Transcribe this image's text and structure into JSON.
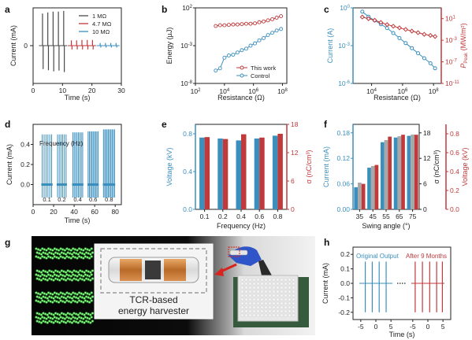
{
  "colors": {
    "gray": "#4a4a4a",
    "red": "#c0393b",
    "blue": "#3b8fbd",
    "axis": "#222222",
    "green": "#6dff6d"
  },
  "panel_letters": [
    "a",
    "b",
    "c",
    "d",
    "e",
    "f",
    "g",
    "h"
  ],
  "chart_data": [
    {
      "panel": "a",
      "type": "line",
      "xlabel": "Time (s)",
      "ylabel": "Current (mA)",
      "xlim": [
        0,
        30
      ],
      "ylim": [
        -1.0,
        1.0
      ],
      "xticks": [
        "0",
        "10",
        "20",
        "30"
      ],
      "yticks": [
        "0"
      ],
      "legend_position": "top-right",
      "series": [
        {
          "name": "1 MΩ",
          "color": "#4a4a4a",
          "pulse_times": [
            3.2,
            5.0,
            6.8,
            8.6,
            10.4
          ],
          "peaks_mA": [
            0.85,
            0.88,
            0.9,
            0.9,
            0.92
          ],
          "troughs_mA": [
            -0.62,
            -0.65,
            -0.68,
            -0.66,
            -0.7
          ]
        },
        {
          "name": "4.7 MΩ",
          "color": "#c0393b",
          "pulse_times": [
            13.0,
            14.8,
            16.6,
            18.4,
            20.2
          ],
          "peaks_mA": [
            0.14,
            0.14,
            0.15,
            0.15,
            0.15
          ],
          "troughs_mA": [
            -0.1,
            -0.1,
            -0.1,
            -0.1,
            -0.1
          ]
        },
        {
          "name": "10 MΩ",
          "color": "#3b8fbd",
          "pulse_times": [
            22.8,
            24.6,
            26.4,
            28.2
          ],
          "peaks_mA": [
            0.07,
            0.07,
            0.07,
            0.07
          ],
          "troughs_mA": [
            -0.05,
            -0.05,
            -0.05,
            -0.05
          ]
        }
      ]
    },
    {
      "panel": "b",
      "type": "line",
      "xlabel": "Resistance (Ω)",
      "ylabel": "Energy (µJ)",
      "scale": "log",
      "xlim_exp": [
        2,
        8.3
      ],
      "ylim_exp": [
        -8,
        2
      ],
      "xticks": [
        {
          "base": "10",
          "exp": "2"
        },
        {
          "base": "10",
          "exp": "4"
        },
        {
          "base": "10",
          "exp": "6"
        },
        {
          "base": "10",
          "exp": "8"
        }
      ],
      "yticks": [
        {
          "base": "10",
          "exp": "-8"
        },
        {
          "base": "10",
          "exp": "-3"
        },
        {
          "base": "10",
          "exp": "2"
        }
      ],
      "legend_position": "bottom-right",
      "series": [
        {
          "name": "This work",
          "color": "#c0393b",
          "x_exp": [
            3.4,
            3.7,
            4.0,
            4.3,
            4.6,
            4.9,
            5.2,
            5.5,
            5.8,
            6.1,
            6.4,
            6.7,
            7.0,
            7.3,
            7.6,
            7.9
          ],
          "y_exp": [
            -0.4,
            -0.3,
            -0.3,
            -0.25,
            -0.2,
            -0.2,
            -0.15,
            -0.1,
            -0.1,
            -0.05,
            0.1,
            0.2,
            0.35,
            0.5,
            0.7,
            0.9
          ]
        },
        {
          "name": "Control",
          "color": "#3b8fbd",
          "x_exp": [
            3.4,
            3.7,
            4.0,
            4.3,
            4.6,
            4.9,
            5.2,
            5.5,
            5.8,
            6.1,
            6.4,
            6.7,
            7.0,
            7.3,
            7.6,
            7.9
          ],
          "y_exp": [
            -6.3,
            -6.0,
            -4.6,
            -4.3,
            -4.2,
            -3.9,
            -3.6,
            -3.4,
            -3.0,
            -2.7,
            -2.3,
            -2.0,
            -1.6,
            -1.3,
            -1.0,
            -0.8
          ]
        }
      ]
    },
    {
      "panel": "c",
      "type": "line",
      "xlabel": "Resistance (Ω)",
      "ylabel": "Current (A)",
      "ylabel_right_base": "P",
      "ylabel_right_sub": "Peak",
      "ylabel_right_unit": " (MW/m²)",
      "scale": "log",
      "xlim_exp": [
        2.8,
        8.5
      ],
      "ylim_left_exp": [
        -6,
        0
      ],
      "ylim_right_exp": [
        -11,
        3
      ],
      "xticks": [
        {
          "base": "10",
          "exp": "4"
        },
        {
          "base": "10",
          "exp": "6"
        },
        {
          "base": "10",
          "exp": "8"
        }
      ],
      "yticks_left": [
        {
          "base": "10",
          "exp": "-6"
        },
        {
          "base": "10",
          "exp": "-3"
        },
        {
          "base": "10",
          "exp": "0"
        }
      ],
      "yticks_right": [
        {
          "base": "10",
          "exp": "1"
        },
        {
          "base": "10",
          "exp": "-3"
        },
        {
          "base": "10",
          "exp": "-7"
        },
        {
          "base": "10",
          "exp": "-11"
        }
      ],
      "series": [
        {
          "axis": "left",
          "color": "#3b8fbd",
          "x_exp": [
            3.4,
            3.8,
            4.2,
            4.6,
            5.0,
            5.4,
            5.8,
            6.2,
            6.6,
            7.0,
            7.4,
            7.8,
            8.1
          ],
          "y_exp": [
            -0.3,
            -0.7,
            -1.0,
            -1.3,
            -1.6,
            -2.0,
            -2.4,
            -2.8,
            -3.2,
            -3.6,
            -4.0,
            -4.4,
            -4.8
          ]
        },
        {
          "axis": "right",
          "color": "#c0393b",
          "x_exp": [
            3.4,
            3.8,
            4.2,
            4.6,
            5.0,
            5.4,
            5.8,
            6.2,
            6.6,
            7.0,
            7.4,
            7.8,
            8.1
          ],
          "y_exp": [
            1.3,
            1.0,
            0.7,
            0.3,
            -0.1,
            -0.4,
            -0.7,
            -1.0,
            -1.3,
            -1.6,
            -1.9,
            -2.1,
            -2.3
          ]
        }
      ]
    },
    {
      "panel": "d",
      "type": "line",
      "xlabel": "Time (s)",
      "ylabel": "Current (mA)",
      "annotation": "Frequency (Hz)",
      "xlim": [
        0,
        86
      ],
      "ylim": [
        -0.2,
        0.6
      ],
      "xticks": [
        "0",
        "20",
        "40",
        "60",
        "80"
      ],
      "yticks": [
        "0.0",
        "0.2",
        "0.4"
      ],
      "groups": [
        {
          "label": "0.1",
          "x_start": 8,
          "x_end": 19,
          "n": 6,
          "peak_mA": 0.5
        },
        {
          "label": "0.2",
          "x_start": 23,
          "x_end": 33,
          "n": 6,
          "peak_mA": 0.5
        },
        {
          "label": "0.4",
          "x_start": 38,
          "x_end": 49,
          "n": 8,
          "peak_mA": 0.52
        },
        {
          "label": "0.6",
          "x_start": 53,
          "x_end": 64,
          "n": 9,
          "peak_mA": 0.53
        },
        {
          "label": "0.8",
          "x_start": 68,
          "x_end": 80,
          "n": 10,
          "peak_mA": 0.55
        }
      ],
      "trough_mA": -0.13,
      "color": "#3b8fbd"
    },
    {
      "panel": "e",
      "type": "bar",
      "xlabel": "Frequency (Hz)",
      "ylabel": "Voltage (kV)",
      "ylabel_right": "σ (nC/cm³)",
      "categories": [
        "0.1",
        "0.2",
        "0.4",
        "0.6",
        "0.8"
      ],
      "ylim_left": [
        0,
        0.9
      ],
      "ylim_right": [
        0,
        18
      ],
      "yticks_left": [
        "0.0",
        "0.4",
        "0.8"
      ],
      "yticks_right": [
        "0",
        "6",
        "12",
        "18"
      ],
      "series": [
        {
          "name": "Voltage",
          "axis": "left",
          "color": "#3b8fbd",
          "values": [
            0.76,
            0.75,
            0.73,
            0.75,
            0.78
          ]
        },
        {
          "name": "σ",
          "axis": "right",
          "color": "#c0393b",
          "values": [
            15.3,
            14.9,
            15.9,
            15.2,
            16.0
          ]
        }
      ]
    },
    {
      "panel": "f",
      "type": "bar",
      "xlabel": "Swing angle (°)",
      "ylabel": "Current (mA)",
      "ylabel_right": "σ (nC/cm³)",
      "ylabel_far_right": "Voltage (kV)",
      "categories": [
        "35",
        "45",
        "55",
        "65",
        "75"
      ],
      "ylim_left": [
        0,
        0.2
      ],
      "ylim_right": [
        0,
        20
      ],
      "ylim_far_right": [
        0,
        0.9
      ],
      "yticks_left": [
        "0.00",
        "0.06",
        "0.12",
        "0.18"
      ],
      "yticks_right": [
        "0",
        "6",
        "12",
        "18"
      ],
      "yticks_far_right": [
        "0.0",
        "0.2",
        "0.4",
        "0.6",
        "0.8"
      ],
      "series": [
        {
          "name": "Current",
          "axis": "left",
          "color": "#3b8fbd",
          "values": [
            0.052,
            0.098,
            0.158,
            0.169,
            0.173
          ]
        },
        {
          "name": "σ",
          "axis": "right",
          "color": "#a8a8a8",
          "values": [
            6.3,
            10.2,
            16.3,
            17.2,
            17.6
          ]
        },
        {
          "name": "Voltage",
          "axis": "far_right",
          "color": "#c0393b",
          "values": [
            0.27,
            0.47,
            0.77,
            0.79,
            0.79
          ]
        }
      ]
    },
    {
      "panel": "h",
      "type": "line",
      "xlabel": "Time (s)",
      "ylabel": "Current (mA)",
      "ylim": [
        -0.25,
        0.25
      ],
      "yticks": [
        "-0.2",
        "-0.1",
        "0.0",
        "0.1",
        "0.2"
      ],
      "xticks_left": [
        "-5",
        "0",
        "5"
      ],
      "xticks_right": [
        "-5",
        "0",
        "5"
      ],
      "series": [
        {
          "name": "Original Output",
          "color": "#3b8fbd",
          "pulse_times": [
            -3.5,
            -1.2,
            1.1,
            3.4
          ],
          "peak_mA": 0.15,
          "trough_mA": -0.2
        },
        {
          "name": "After 9 Months",
          "color": "#c0393b",
          "pulse_times": [
            -4.2,
            -1.8,
            0.6,
            2.9,
            4.8
          ],
          "peak_mA": 0.15,
          "trough_mA": -0.2
        }
      ]
    }
  ],
  "photo_g": {
    "caption_line1": "TCR-based",
    "caption_line2": "energy harvester"
  }
}
